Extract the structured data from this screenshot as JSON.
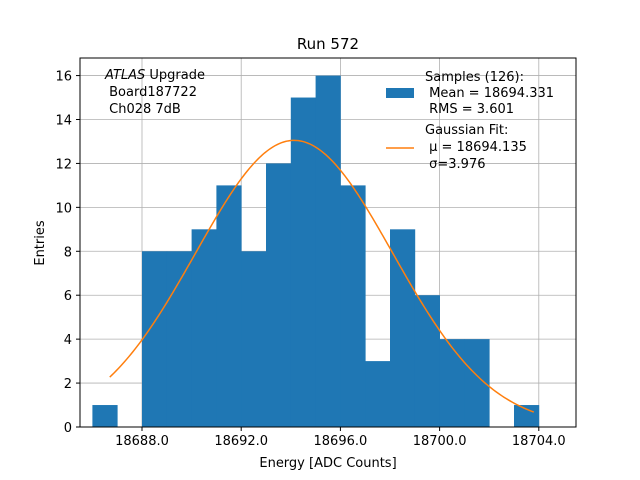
{
  "chart_data": {
    "type": "bar",
    "title": "Run 572",
    "xlabel": "Energy [ADC Counts]",
    "ylabel": "Entries",
    "xlim": [
      18685.5,
      18705.5
    ],
    "ylim": [
      0,
      16.8
    ],
    "x_ticks": [
      18688.0,
      18692.0,
      18696.0,
      18700.0,
      18704.0
    ],
    "x_tick_labels": [
      "18688.0",
      "18692.0",
      "18696.0",
      "18700.0",
      "18704.0"
    ],
    "y_ticks": [
      0,
      2,
      4,
      6,
      8,
      10,
      12,
      14,
      16
    ],
    "y_tick_labels": [
      "0",
      "2",
      "4",
      "6",
      "8",
      "10",
      "12",
      "14",
      "16"
    ],
    "grid": true,
    "bar_color": "#1f77b4",
    "fit_color": "#ff7f0e",
    "histogram": {
      "bin_width": 1,
      "bins": [
        {
          "x": 18686,
          "count": 1
        },
        {
          "x": 18687,
          "count": 0
        },
        {
          "x": 18688,
          "count": 8
        },
        {
          "x": 18689,
          "count": 8
        },
        {
          "x": 18690,
          "count": 9
        },
        {
          "x": 18691,
          "count": 11
        },
        {
          "x": 18692,
          "count": 8
        },
        {
          "x": 18693,
          "count": 12
        },
        {
          "x": 18694,
          "count": 15
        },
        {
          "x": 18695,
          "count": 16
        },
        {
          "x": 18696,
          "count": 11
        },
        {
          "x": 18697,
          "count": 3
        },
        {
          "x": 18698,
          "count": 9
        },
        {
          "x": 18699,
          "count": 6
        },
        {
          "x": 18700,
          "count": 4
        },
        {
          "x": 18701,
          "count": 4
        },
        {
          "x": 18702,
          "count": 0
        },
        {
          "x": 18703,
          "count": 1
        }
      ]
    },
    "gaussian_fit": {
      "mu": 18694.135,
      "sigma": 3.976,
      "amplitude": 13.05,
      "x_range": [
        18686.7,
        18703.8
      ]
    },
    "annotation": {
      "italic": "ATLAS",
      "line1_rest": " Upgrade",
      "line2": " Board187722",
      "line3": " Ch028 7dB"
    },
    "legend": {
      "position": "top-right",
      "samples": {
        "line1": "Samples (126):",
        "line2": " Mean = 18694.331",
        "line3": " RMS = 3.601"
      },
      "fit": {
        "line1": "Gaussian Fit:",
        "line2": " μ = 18694.135",
        "line3": " σ=3.976"
      }
    }
  }
}
